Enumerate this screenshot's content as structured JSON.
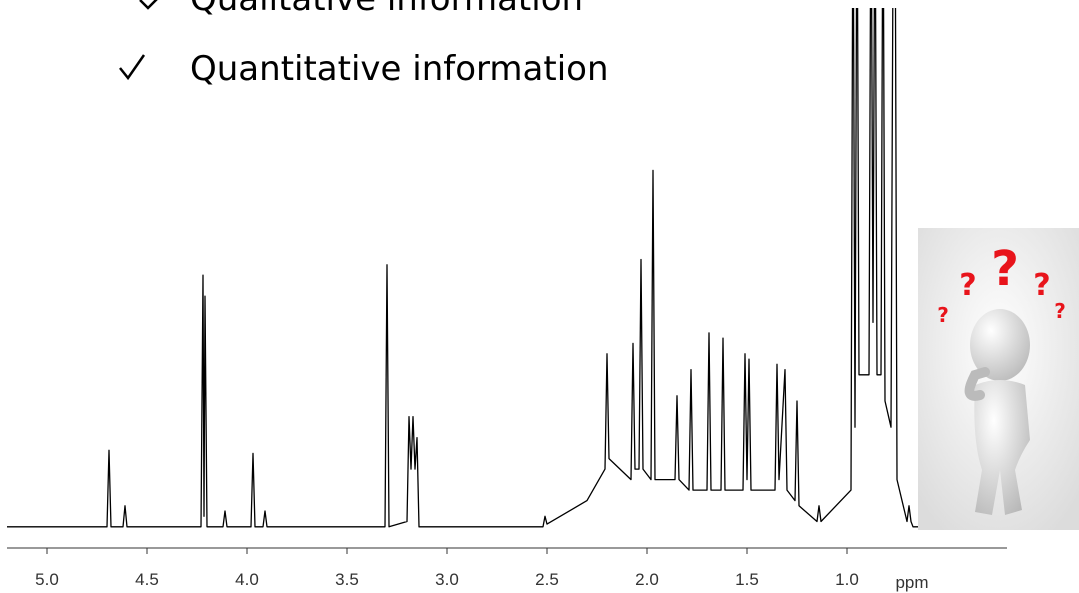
{
  "bullets": [
    "Qualitative information",
    "Quantitative information"
  ],
  "chart_data": {
    "type": "line",
    "color": "#000000",
    "xlabel": "ppm",
    "xlim": [
      5.2,
      0.2
    ],
    "ylim": [
      0,
      100
    ],
    "xticks": [
      {
        "value": 5.0,
        "label": "5.0"
      },
      4.5,
      {
        "value": 4.0,
        "label": "4.0"
      },
      3.5,
      {
        "value": 3.0,
        "label": "3.0"
      },
      2.5,
      {
        "value": 2.0,
        "label": "2.0"
      },
      1.5,
      {
        "value": 1.0,
        "label": "1.0"
      }
    ],
    "x": [
      5.2,
      4.7,
      4.69,
      4.68,
      4.62,
      4.61,
      4.6,
      4.23,
      4.22,
      4.215,
      4.21,
      4.2,
      4.12,
      4.11,
      4.1,
      3.98,
      3.97,
      3.96,
      3.92,
      3.91,
      3.9,
      3.31,
      3.3,
      3.29,
      3.2,
      3.19,
      3.18,
      3.17,
      3.16,
      3.15,
      3.14,
      2.52,
      2.51,
      2.5,
      2.3,
      2.21,
      2.2,
      2.19,
      2.08,
      2.07,
      2.06,
      2.04,
      2.03,
      2.02,
      1.98,
      1.97,
      1.96,
      1.86,
      1.85,
      1.84,
      1.79,
      1.78,
      1.77,
      1.7,
      1.69,
      1.68,
      1.63,
      1.62,
      1.61,
      1.52,
      1.51,
      1.5,
      1.49,
      1.48,
      1.36,
      1.35,
      1.34,
      1.31,
      1.3,
      1.26,
      1.25,
      1.24,
      1.15,
      1.14,
      1.13,
      0.98,
      0.97,
      0.96,
      0.95,
      0.94,
      0.89,
      0.88,
      0.87,
      0.86,
      0.85,
      0.83,
      0.82,
      0.81,
      0.78,
      0.77,
      0.76,
      0.75,
      0.7,
      0.69,
      0.68,
      0.67,
      0.2
    ],
    "values": [
      1,
      1,
      15.6,
      1,
      1,
      5,
      1,
      1,
      49,
      3,
      45,
      1,
      1,
      4,
      1,
      1,
      15,
      1,
      1,
      4,
      1,
      1,
      51,
      1,
      2,
      22,
      12,
      22,
      12,
      18,
      1,
      1,
      3,
      1.5,
      6,
      12,
      34,
      14,
      10,
      36,
      12,
      12,
      52,
      12,
      10,
      69,
      10,
      10,
      26,
      10,
      8,
      31,
      8,
      8,
      38,
      8,
      8,
      37,
      8,
      8,
      34,
      10,
      33,
      8,
      8,
      32,
      10,
      31,
      8,
      6,
      25,
      5,
      2,
      5,
      2,
      8,
      130,
      20,
      130,
      30,
      30,
      130,
      40,
      130,
      30,
      30,
      130,
      25,
      20,
      110,
      130,
      10,
      2,
      5,
      2,
      1,
      1
    ],
    "annotations": [
      "?",
      "?",
      "?",
      "?",
      "?"
    ]
  }
}
